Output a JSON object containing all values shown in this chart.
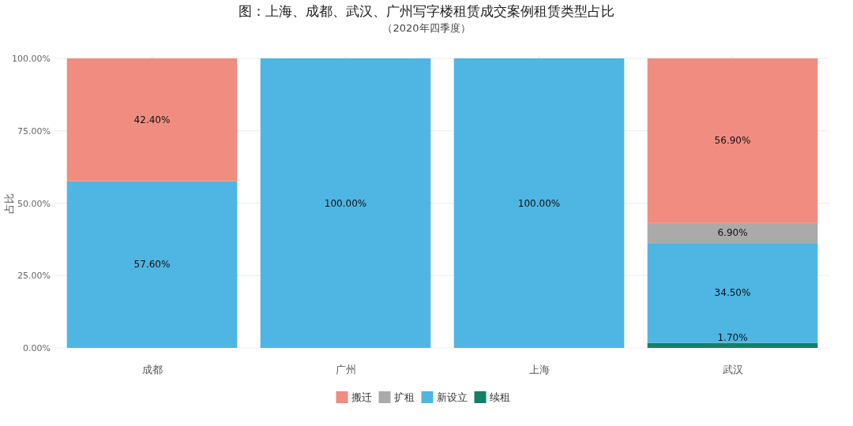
{
  "chart_data": {
    "type": "bar",
    "title": "图：上海、成都、武汉、广州写字楼租赁成交案例租赁类型占比",
    "subtitle": "（2020年四季度）",
    "ylabel": "占比",
    "stacked": true,
    "categories": [
      "成都",
      "广州",
      "上海",
      "武汉"
    ],
    "ylim": [
      0,
      100
    ],
    "yticks": [
      {
        "value": 0,
        "label": "0.00%"
      },
      {
        "value": 25,
        "label": "25.00%"
      },
      {
        "value": 50,
        "label": "50.00%"
      },
      {
        "value": 75,
        "label": "75.00%"
      },
      {
        "value": 100,
        "label": "100.00%"
      }
    ],
    "grid": true,
    "legend": "bottom",
    "series": [
      {
        "name": "续租",
        "color": "#148066",
        "values": [
          null,
          null,
          null,
          1.7
        ],
        "value_labels": [
          null,
          null,
          null,
          "1.70%"
        ]
      },
      {
        "name": "新设立",
        "color": "#4fb5e3",
        "values": [
          57.6,
          100,
          100,
          34.5
        ],
        "value_labels": [
          "57.60%",
          "100.00%",
          "100.00%",
          "34.50%"
        ]
      },
      {
        "name": "扩租",
        "color": "#aaaaaa",
        "values": [
          null,
          null,
          null,
          6.9
        ],
        "value_labels": [
          null,
          null,
          null,
          "6.90%"
        ]
      },
      {
        "name": "搬迁",
        "color": "#f08c80",
        "values": [
          42.4,
          null,
          null,
          56.9
        ],
        "value_labels": [
          "42.40%",
          null,
          null,
          "56.90%"
        ]
      }
    ]
  }
}
